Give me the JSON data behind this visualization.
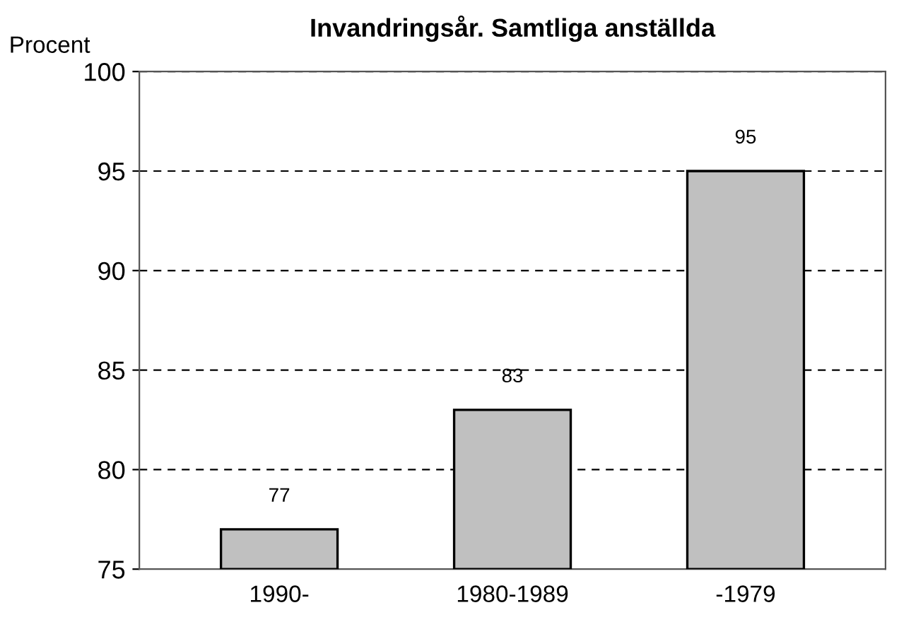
{
  "chart_data": {
    "type": "bar",
    "title": "Invandringsår. Samtliga anställda",
    "ylabel": "Procent",
    "categories": [
      "1990-",
      "1980-1989",
      "-1979"
    ],
    "values": [
      77,
      83,
      95
    ],
    "color": "#c0c0c0",
    "ylim": [
      75,
      100
    ],
    "yticks": [
      75,
      80,
      85,
      90,
      95,
      100
    ],
    "grid": "y",
    "data_labels": true
  }
}
